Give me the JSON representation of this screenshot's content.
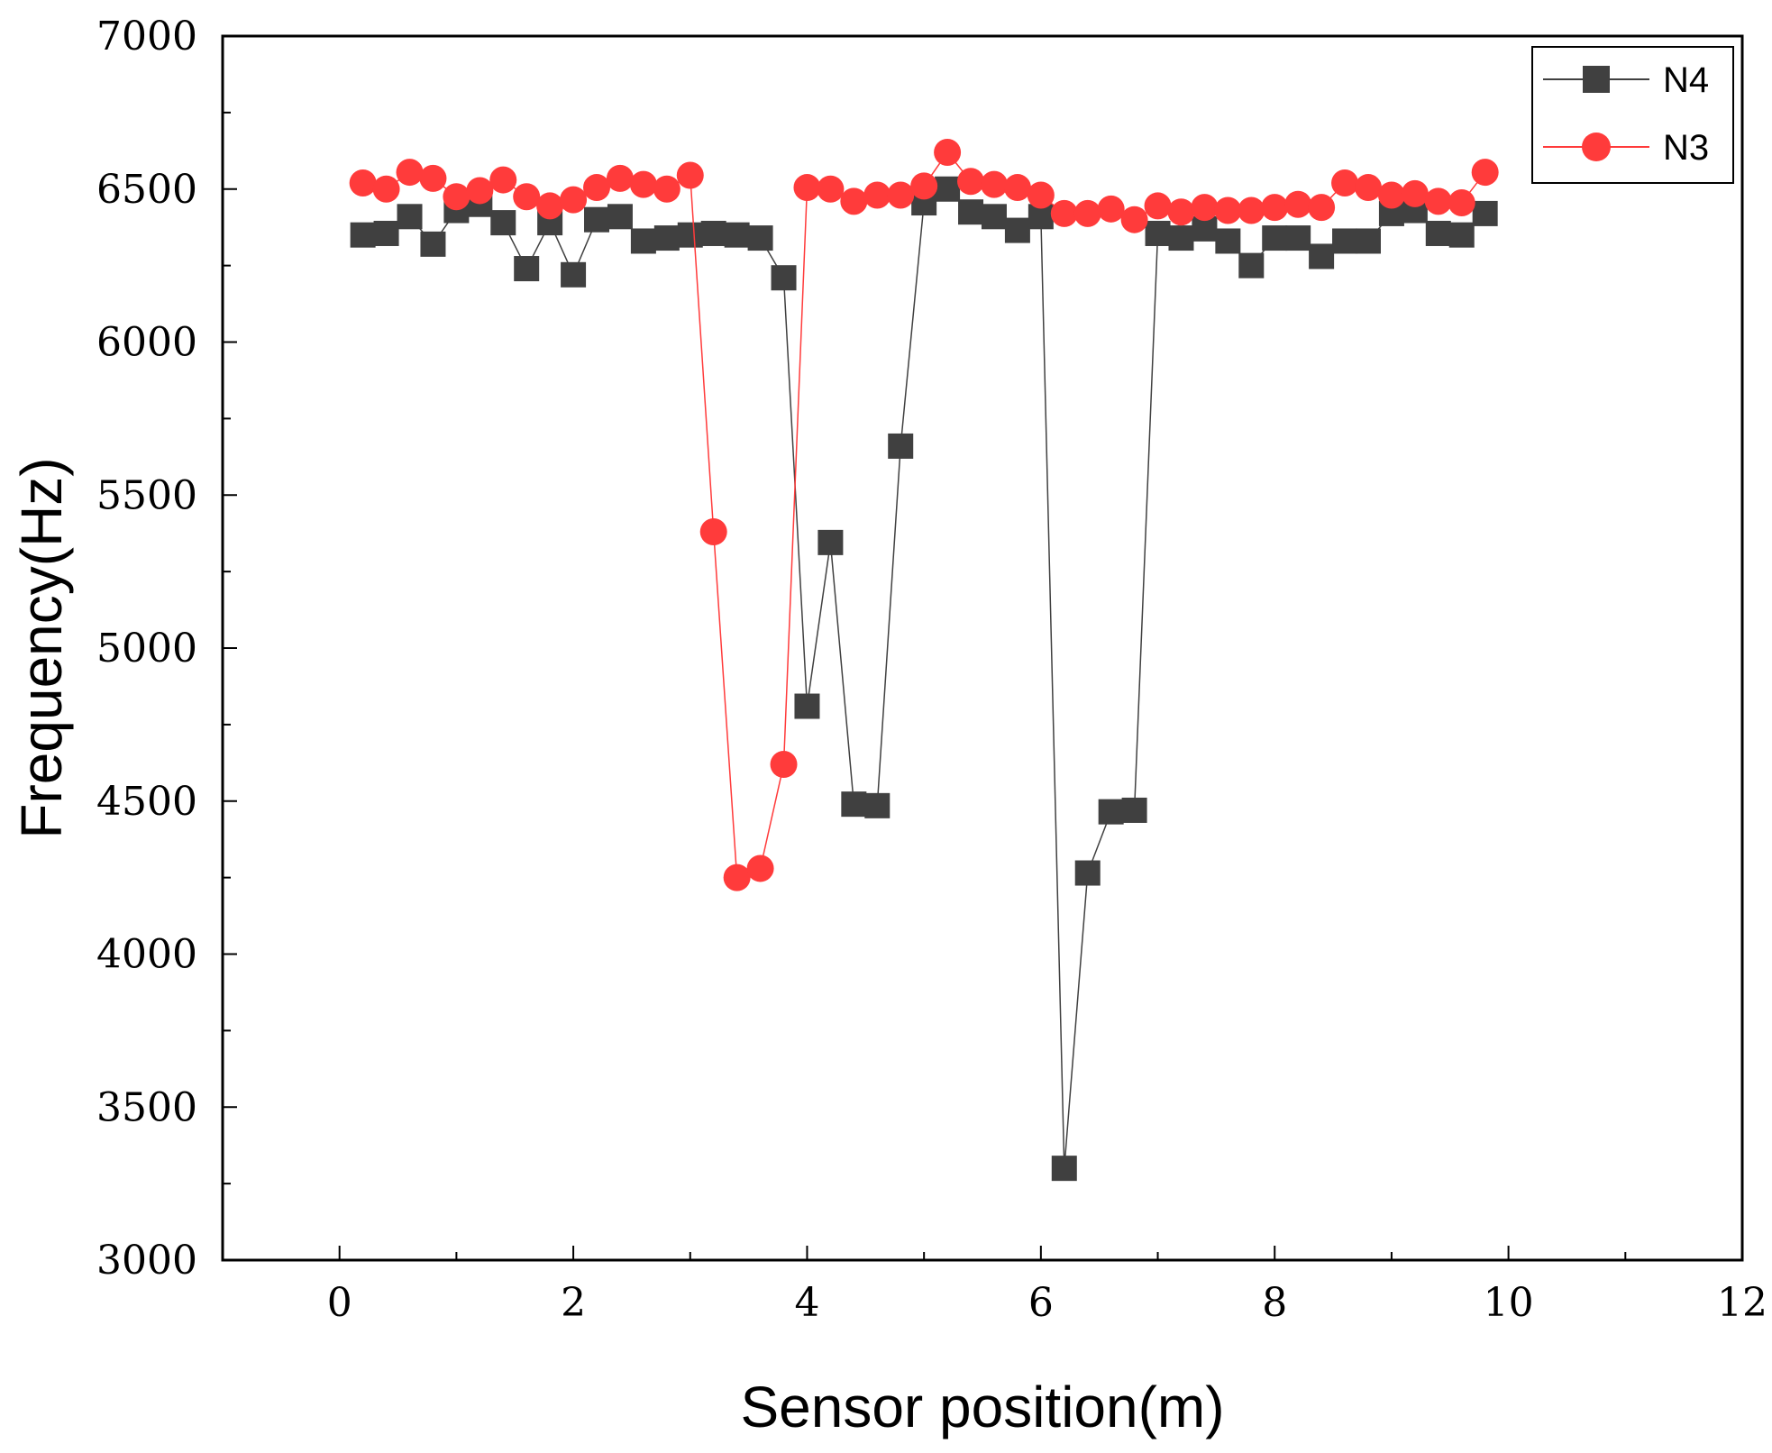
{
  "chart_data": {
    "type": "scatter",
    "xlabel": "Sensor position(m)",
    "ylabel": "Frequency(Hz)",
    "xlim": [
      -1,
      12
    ],
    "ylim": [
      3000,
      7000
    ],
    "xticks": [
      0,
      2,
      4,
      6,
      8,
      10,
      12
    ],
    "yticks": [
      3000,
      3500,
      4000,
      4500,
      5000,
      5500,
      6000,
      6500,
      7000
    ],
    "x_tick_labels": [
      "0",
      "2",
      "4",
      "6",
      "8",
      "10",
      "12"
    ],
    "y_tick_labels": [
      "3000",
      "3500",
      "4000",
      "4500",
      "5000",
      "5500",
      "6000",
      "6500",
      "7000"
    ],
    "legend_position": "top-right",
    "x": [
      0.2,
      0.4,
      0.6,
      0.8,
      1.0,
      1.2,
      1.4,
      1.6,
      1.8,
      2.0,
      2.2,
      2.4,
      2.6,
      2.8,
      3.0,
      3.2,
      3.4,
      3.6,
      3.8,
      4.0,
      4.2,
      4.4,
      4.6,
      4.8,
      5.0,
      5.2,
      5.4,
      5.6,
      5.8,
      6.0,
      6.2,
      6.4,
      6.6,
      6.8,
      7.0,
      7.2,
      7.4,
      7.6,
      7.8,
      8.0,
      8.2,
      8.4,
      8.6,
      8.8,
      9.0,
      9.2,
      9.4,
      9.6,
      9.8
    ],
    "series": [
      {
        "name": "N4",
        "color": "#404040",
        "marker": "square",
        "values": [
          6350,
          6355,
          6410,
          6320,
          6430,
          6450,
          6390,
          6240,
          6390,
          6220,
          6400,
          6410,
          6330,
          6340,
          6350,
          6355,
          6350,
          6340,
          6210,
          4810,
          5345,
          4490,
          4485,
          5660,
          6455,
          6500,
          6425,
          6410,
          6365,
          6410,
          3300,
          4265,
          4465,
          4470,
          6355,
          6340,
          6370,
          6330,
          6250,
          6340,
          6340,
          6280,
          6330,
          6330,
          6420,
          6430,
          6355,
          6350,
          6420
        ]
      },
      {
        "name": "N3",
        "color": "#ff3b3b",
        "marker": "circle",
        "values": [
          6520,
          6500,
          6555,
          6535,
          6475,
          6495,
          6530,
          6475,
          6445,
          6465,
          6505,
          6535,
          6515,
          6500,
          6545,
          5380,
          4250,
          4280,
          4620,
          6505,
          6500,
          6460,
          6480,
          6480,
          6510,
          6620,
          6525,
          6515,
          6505,
          6480,
          6420,
          6420,
          6435,
          6400,
          6445,
          6425,
          6440,
          6430,
          6430,
          6440,
          6450,
          6440,
          6520,
          6505,
          6480,
          6485,
          6460,
          6455,
          6555
        ]
      }
    ]
  }
}
